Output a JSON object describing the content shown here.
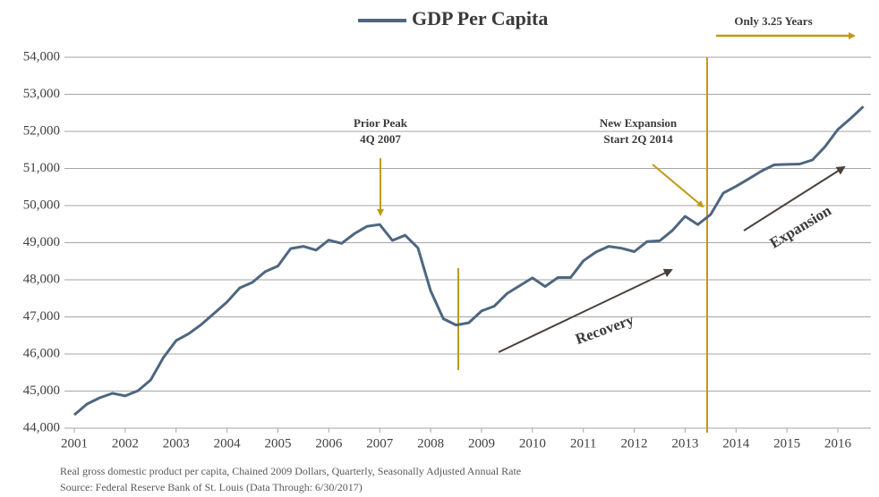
{
  "chart_data": {
    "type": "line",
    "x": [
      2001,
      2001.25,
      2001.5,
      2001.75,
      2002,
      2002.25,
      2002.5,
      2002.75,
      2003,
      2003.25,
      2003.5,
      2003.75,
      2004,
      2004.25,
      2004.5,
      2004.75,
      2005,
      2005.25,
      2005.5,
      2005.75,
      2006,
      2006.25,
      2006.5,
      2006.75,
      2007,
      2007.25,
      2007.5,
      2007.75,
      2008,
      2008.25,
      2008.5,
      2008.75,
      2009,
      2009.25,
      2009.5,
      2009.75,
      2010,
      2010.25,
      2010.5,
      2010.75,
      2011,
      2011.25,
      2011.5,
      2011.75,
      2012,
      2012.25,
      2012.5,
      2012.75,
      2013,
      2013.25,
      2013.5,
      2013.75,
      2014,
      2014.25,
      2014.5,
      2014.75,
      2015,
      2015.25,
      2015.5,
      2015.75,
      2016,
      2016.25,
      2016.5
    ],
    "series": [
      {
        "name": "GDP Per Capita",
        "color": "#4e6680",
        "values": [
          44360,
          44650,
          44820,
          44940,
          44870,
          45010,
          45300,
          45900,
          46360,
          46550,
          46800,
          47100,
          47400,
          47780,
          47930,
          48220,
          48370,
          48840,
          48900,
          48800,
          49070,
          48980,
          49240,
          49440,
          49490,
          49060,
          49200,
          48860,
          47700,
          46950,
          46780,
          46840,
          47160,
          47290,
          47630,
          47840,
          48050,
          47820,
          48060,
          48060,
          48510,
          48750,
          48900,
          48850,
          48760,
          49030,
          49050,
          49330,
          49710,
          49490,
          49760,
          50340,
          50520,
          50720,
          50930,
          51100,
          51110,
          51120,
          51230,
          51590,
          52050,
          52350,
          52670
        ]
      }
    ],
    "xlim": [
      2001,
      2016.65
    ],
    "xticks": [
      2001,
      2002,
      2003,
      2004,
      2005,
      2006,
      2007,
      2008,
      2009,
      2010,
      2011,
      2012,
      2013,
      2014,
      2015,
      2016
    ],
    "ylim": [
      44000,
      54000
    ],
    "yticks": [
      {
        "value": 44000,
        "label": "44,000"
      },
      {
        "value": 45000,
        "label": "45,000"
      },
      {
        "value": 46000,
        "label": "46,000"
      },
      {
        "value": 47000,
        "label": "47,000"
      },
      {
        "value": 48000,
        "label": "48,000"
      },
      {
        "value": 49000,
        "label": "49,000"
      },
      {
        "value": 50000,
        "label": "50,000"
      },
      {
        "value": 51000,
        "label": "51,000"
      },
      {
        "value": 52000,
        "label": "52,000"
      },
      {
        "value": 53000,
        "label": "53,000"
      },
      {
        "value": 54000,
        "label": "54,000"
      }
    ],
    "grid": true,
    "annotations": [
      "Prior Peak",
      "4Q 2007",
      "New Expansion",
      "Start 2Q 2014",
      "Recovery",
      "Expansion",
      "Only 3.25 Years"
    ],
    "notes": [
      "Real gross domestic product per capita, Chained 2009 Dollars, Quarterly, Seasonally Adjusted Annual Rate",
      "Source: Federal Reserve Bank of St. Louis (Data Through: 6/30/2017)"
    ]
  }
}
